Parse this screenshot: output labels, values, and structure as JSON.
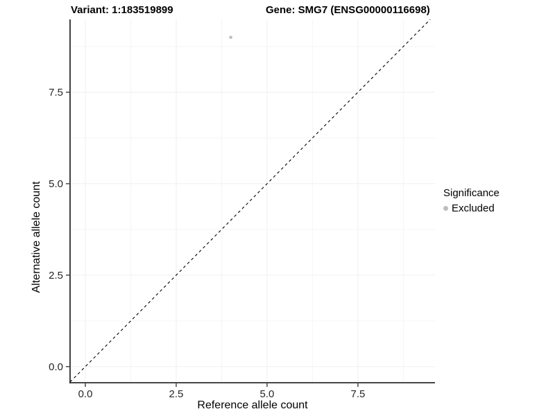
{
  "titles": {
    "variant": "Variant: 1:183519899",
    "gene": "Gene: SMG7 (ENSG00000116698)"
  },
  "colors": {
    "axis_line": "#2b2b2b",
    "tick_text": "#262626",
    "grid_major": "#efefef",
    "grid_minor": "#f5f5f5",
    "identity_line": "#000000",
    "point": "#bdbdbd",
    "background": "#ffffff"
  },
  "chart_data": {
    "type": "scatter",
    "xlabel": "Reference allele count",
    "ylabel": "Alternative allele count",
    "xlim": [
      -0.42,
      9.62
    ],
    "ylim": [
      -0.44,
      9.49
    ],
    "x_tick_values": [
      0,
      2.5,
      5,
      7.5
    ],
    "x_tick_labels": [
      "0.0",
      "2.5",
      "5.0",
      "7.5"
    ],
    "y_tick_values": [
      0,
      2.5,
      5,
      7.5
    ],
    "y_tick_labels": [
      "0.0",
      "2.5",
      "5.0",
      "7.5"
    ],
    "x_minor_tick_values": [
      1.25,
      3.75,
      6.25,
      8.75
    ],
    "y_minor_tick_values": [
      1.25,
      3.75,
      6.25,
      8.75
    ],
    "grid": true,
    "points": [
      {
        "x": 4,
        "y": 9,
        "significance": "Excluded"
      }
    ],
    "identity_line": {
      "slope": 1,
      "intercept": 0,
      "style": "dashed"
    },
    "legend": {
      "position": "right",
      "title": "Significance",
      "entries": [
        {
          "label": "Excluded",
          "color": "#bdbdbd"
        }
      ]
    }
  }
}
